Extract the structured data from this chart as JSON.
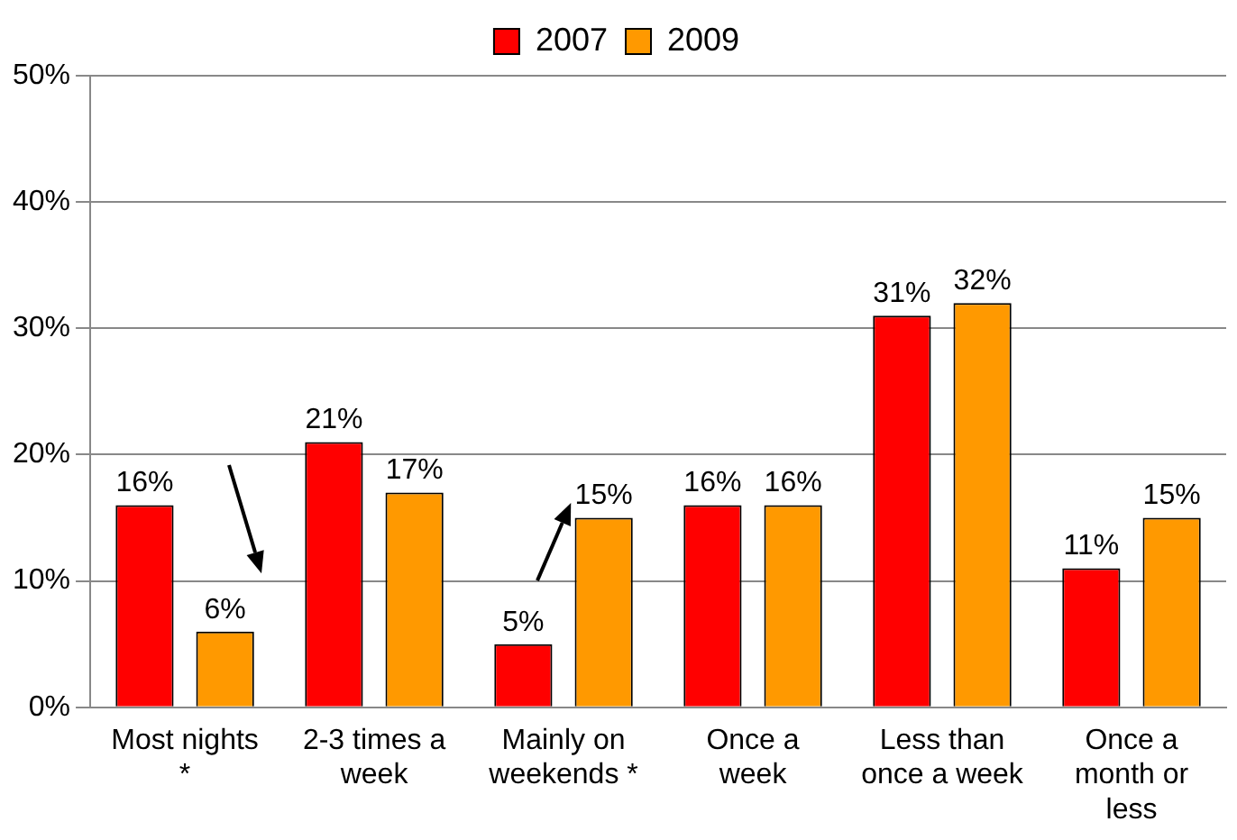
{
  "chart_data": {
    "type": "bar",
    "categories": [
      "Most nights *",
      "2-3 times a week",
      "Mainly on weekends *",
      "Once a week",
      "Less than once a week",
      "Once a month or less"
    ],
    "series": [
      {
        "name": "2007",
        "color": "#ff0000",
        "values": [
          16,
          21,
          5,
          16,
          31,
          11
        ],
        "value_labels": [
          "16%",
          "21%",
          "5%",
          "16%",
          "31%",
          "11%"
        ]
      },
      {
        "name": "2009",
        "color": "#ff9900",
        "values": [
          6,
          17,
          15,
          16,
          32,
          15
        ],
        "value_labels": [
          "6%",
          "17%",
          "15%",
          "16%",
          "32%",
          "15%"
        ]
      }
    ],
    "ylim": [
      0,
      50
    ],
    "yticks": [
      {
        "value": 0,
        "label": "0%"
      },
      {
        "value": 10,
        "label": "10%"
      },
      {
        "value": 20,
        "label": "20%"
      },
      {
        "value": 30,
        "label": "30%"
      },
      {
        "value": 40,
        "label": "40%"
      },
      {
        "value": 50,
        "label": "50%"
      }
    ],
    "grid": "y",
    "legend": "top"
  }
}
